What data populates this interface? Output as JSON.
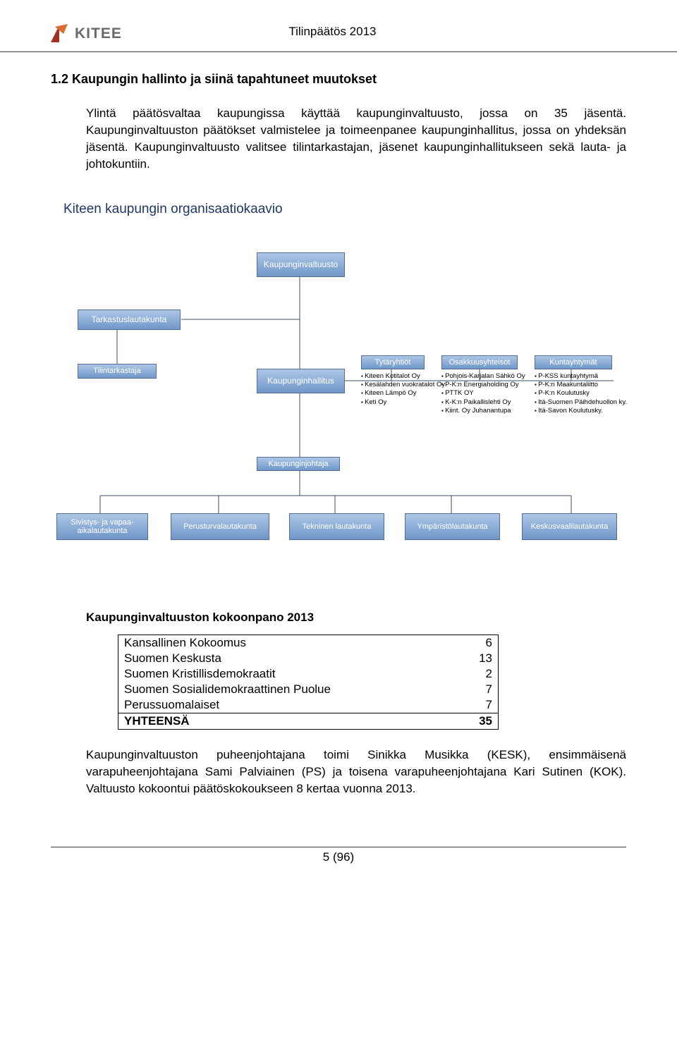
{
  "header": {
    "doc_title": "Tilinpäätös 2013",
    "logo": {
      "text": "KITEE",
      "text_color": "#6a6a6a",
      "triangle_colors": [
        "#d96c2f",
        "#a33020"
      ]
    }
  },
  "section": {
    "number_title": "1.2 Kaupungin hallinto ja siinä tapahtuneet muutokset",
    "intro": "Ylintä päätösvaltaa kaupungissa käyttää kaupunginvaltuusto, jossa on 35 jäsentä. Kaupunginvaltuuston päätökset valmistelee ja toimeenpanee kaupunginhallitus, jossa on yhdeksän jäsentä. Kaupunginvaltuusto valitsee tilintarkastajan, jäsenet kaupunginhallitukseen sekä lauta- ja johtokuntiin."
  },
  "org": {
    "title": "Kiteen kaupungin organisaatiokaavio",
    "node_gradient_top": "#adc6e6",
    "node_gradient_bottom": "#6f97c8",
    "node_border": "#556d8f",
    "line_color": "#404e63",
    "nodes": {
      "valtuusto": "Kaupunginvaltuusto",
      "tarkastus": "Tarkastuslautakunta",
      "tilintark": "Tilintarkastaja",
      "hallitus": "Kaupunginhallitus",
      "tytar": "Tytäryhtiöt",
      "osakkuus": "Osakkuusyhteisöt",
      "kuntayht": "Kuntayhtymät",
      "johtaja": "Kaupunginjohtaja",
      "sivistys": "Sivistys- ja vapaa-aikalautakunta",
      "perustur": "Perusturvalautakunta",
      "tekninen": "Tekninen lautakunta",
      "ymparisto": "Ympäristölautakunta",
      "keskusv": "Keskusvaalilautakunta"
    },
    "tytar_items": [
      "Kiteen Kotitalot Oy",
      "Kesälahden vuokratalot Oy",
      "Kiteen Lämpö Oy",
      "Keti Oy"
    ],
    "osakkuus_items": [
      "Pohjois-Karjalan Sähkö Oy",
      "P-K:n Energiaholding Oy",
      "PTTK OY",
      "K-K:n Paikallislehti Oy",
      "Kiint. Oy Juhanantupa"
    ],
    "kuntayht_items": [
      "P-KSS kuntayhtymä",
      "P-K:n Maakuntaliitto",
      "P-K:n Koulutusky",
      "Itä-Suomen Päihdehuollon ky.",
      "Itä-Savon Koulutusky."
    ]
  },
  "composition": {
    "title": "Kaupunginvaltuuston kokoonpano 2013",
    "rows": [
      {
        "label": "Kansallinen Kokoomus",
        "value": 6
      },
      {
        "label": "Suomen Keskusta",
        "value": 13
      },
      {
        "label": "Suomen Kristillisdemokraatit",
        "value": 2
      },
      {
        "label": "Suomen Sosialidemokraattinen Puolue",
        "value": 7
      },
      {
        "label": "Perussuomalaiset",
        "value": 7
      }
    ],
    "total_label": "YHTEENSÄ",
    "total_value": 35
  },
  "closing": "Kaupunginvaltuuston puheenjohtajana toimi Sinikka Musikka (KESK), ensimmäisenä varapuheenjohtajana Sami Palviainen (PS) ja toisena varapuheenjohtajana Kari Sutinen (KOK). Valtuusto kokoontui päätöskokoukseen 8 kertaa vuonna 2013.",
  "footer": {
    "page": "5 (96)"
  }
}
